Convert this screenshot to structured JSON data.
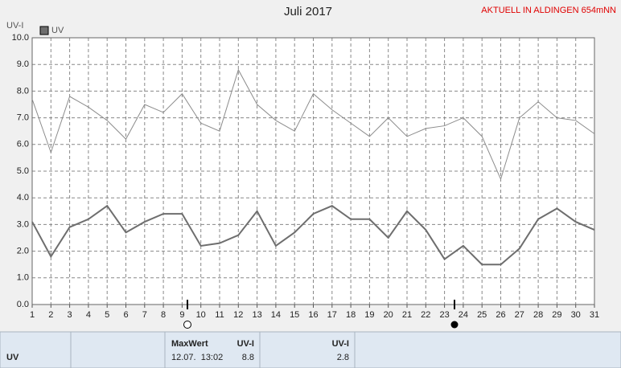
{
  "chart_data": {
    "type": "line",
    "title": "Juli 2017",
    "subtitle": "AKTUELL IN ALDINGEN 654mNN",
    "y_label": "UV-I",
    "x": [
      1,
      2,
      3,
      4,
      5,
      6,
      7,
      8,
      9,
      10,
      11,
      12,
      13,
      14,
      15,
      16,
      17,
      18,
      19,
      20,
      21,
      22,
      23,
      24,
      25,
      26,
      27,
      28,
      29,
      30,
      31
    ],
    "series": [
      {
        "name": "UV",
        "color": "#6e6e6e",
        "values": [
          3.1,
          1.8,
          2.9,
          3.2,
          3.7,
          2.7,
          3.1,
          3.4,
          3.4,
          2.2,
          2.3,
          2.6,
          3.5,
          2.2,
          2.7,
          3.4,
          3.7,
          3.2,
          3.2,
          2.5,
          3.5,
          2.8,
          1.7,
          2.2,
          1.5,
          1.5,
          2.1,
          3.2,
          3.6,
          3.1,
          2.8
        ]
      },
      {
        "color": "#8c8c8c",
        "values": [
          7.7,
          5.7,
          7.8,
          7.4,
          6.9,
          6.2,
          7.5,
          7.2,
          7.9,
          6.8,
          6.5,
          8.8,
          7.5,
          6.9,
          6.5,
          7.9,
          7.3,
          6.8,
          6.3,
          7.0,
          6.3,
          6.6,
          6.7,
          7.0,
          6.3,
          4.7,
          7.0,
          7.6,
          7.0,
          6.9,
          6.4
        ]
      }
    ],
    "xlim": [
      1,
      31
    ],
    "xticks": [
      1,
      2,
      3,
      4,
      5,
      6,
      7,
      8,
      9,
      10,
      11,
      12,
      13,
      14,
      15,
      16,
      17,
      18,
      19,
      20,
      21,
      22,
      23,
      24,
      25,
      26,
      27,
      28,
      29,
      30,
      31
    ],
    "ylim": [
      0,
      10
    ],
    "yticks": [
      {
        "value": 0,
        "label": "0.0"
      },
      {
        "value": 1,
        "label": "1.0"
      },
      {
        "value": 2,
        "label": "2.0"
      },
      {
        "value": 3,
        "label": "3.0"
      },
      {
        "value": 4,
        "label": "4.0"
      },
      {
        "value": 5,
        "label": "5.0"
      },
      {
        "value": 6,
        "label": "6.0"
      },
      {
        "value": 7,
        "label": "7.0"
      },
      {
        "value": 8,
        "label": "8.0"
      },
      {
        "value": 9,
        "label": "9.0"
      },
      {
        "value": 10,
        "label": "10.0"
      }
    ],
    "grid": true
  },
  "footer": {
    "label": "UV",
    "max_header": "MaxWert",
    "max_unit": "UV-I",
    "max_time": "12.07.  13:02",
    "max_value": "8.8",
    "current_unit": "UV-I",
    "current_value": "2.8"
  }
}
